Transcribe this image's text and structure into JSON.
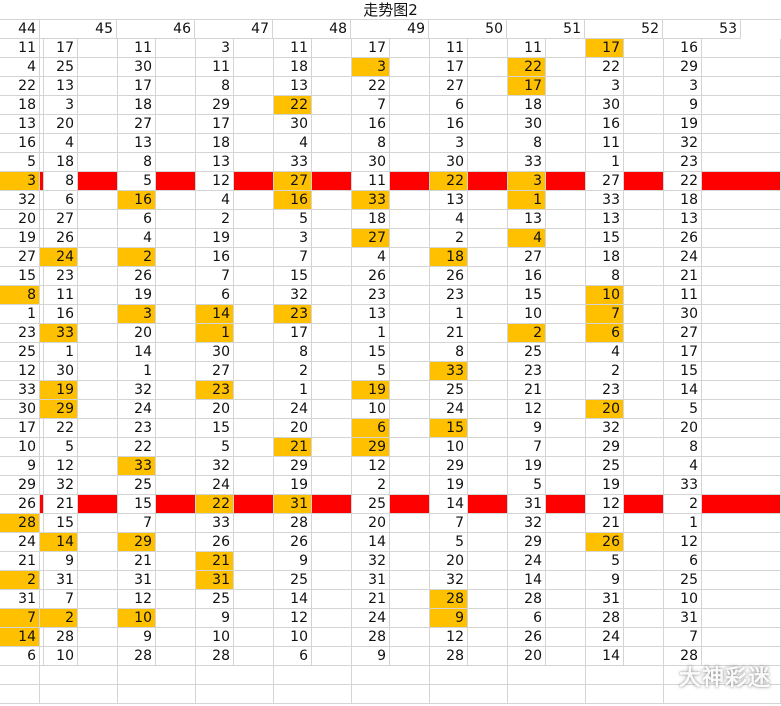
{
  "title": "走势图2",
  "watermark": "大神彩迷",
  "colors": {
    "highlight": "#ffc000",
    "separator": "#ff0000",
    "grid": "#d4d4d4"
  },
  "headers": [
    "44",
    "45",
    "46",
    "47",
    "48",
    "49",
    "50",
    "51",
    "52",
    "53"
  ],
  "rows": [
    [
      "11",
      "17",
      "11",
      "3",
      "11",
      "17",
      "11",
      "11",
      "17",
      "16"
    ],
    [
      "4",
      "25",
      "30",
      "11",
      "18",
      "3",
      "17",
      "22",
      "22",
      "29"
    ],
    [
      "22",
      "13",
      "17",
      "8",
      "13",
      "22",
      "27",
      "17",
      "3",
      "3"
    ],
    [
      "18",
      "3",
      "18",
      "29",
      "22",
      "7",
      "6",
      "18",
      "30",
      "9"
    ],
    [
      "13",
      "20",
      "27",
      "17",
      "30",
      "16",
      "16",
      "30",
      "16",
      "19"
    ],
    [
      "16",
      "4",
      "13",
      "18",
      "4",
      "8",
      "3",
      "8",
      "11",
      "32"
    ],
    [
      "5",
      "18",
      "8",
      "13",
      "33",
      "30",
      "30",
      "33",
      "1",
      "23"
    ],
    [
      "3",
      "8",
      "5",
      "12",
      "27",
      "11",
      "22",
      "3",
      "27",
      "22"
    ],
    [
      "32",
      "6",
      "16",
      "4",
      "16",
      "33",
      "13",
      "1",
      "33",
      "18"
    ],
    [
      "20",
      "27",
      "6",
      "2",
      "5",
      "18",
      "4",
      "13",
      "13",
      "13"
    ],
    [
      "19",
      "26",
      "4",
      "19",
      "3",
      "27",
      "2",
      "4",
      "15",
      "26"
    ],
    [
      "27",
      "24",
      "2",
      "16",
      "7",
      "4",
      "18",
      "27",
      "18",
      "24"
    ],
    [
      "15",
      "23",
      "26",
      "7",
      "15",
      "26",
      "26",
      "16",
      "8",
      "21"
    ],
    [
      "8",
      "11",
      "19",
      "6",
      "32",
      "23",
      "23",
      "15",
      "10",
      "11"
    ],
    [
      "1",
      "16",
      "3",
      "14",
      "23",
      "13",
      "1",
      "10",
      "7",
      "30"
    ],
    [
      "23",
      "33",
      "20",
      "1",
      "17",
      "1",
      "21",
      "2",
      "6",
      "27"
    ],
    [
      "25",
      "1",
      "14",
      "30",
      "8",
      "15",
      "8",
      "25",
      "4",
      "17"
    ],
    [
      "12",
      "30",
      "1",
      "27",
      "2",
      "5",
      "33",
      "23",
      "2",
      "15"
    ],
    [
      "33",
      "19",
      "32",
      "23",
      "1",
      "19",
      "25",
      "21",
      "23",
      "14"
    ],
    [
      "30",
      "29",
      "24",
      "20",
      "24",
      "10",
      "24",
      "12",
      "20",
      "5"
    ],
    [
      "17",
      "22",
      "23",
      "15",
      "20",
      "6",
      "15",
      "9",
      "32",
      "20"
    ],
    [
      "10",
      "5",
      "22",
      "5",
      "21",
      "29",
      "10",
      "7",
      "29",
      "8"
    ],
    [
      "9",
      "12",
      "33",
      "32",
      "29",
      "12",
      "29",
      "19",
      "25",
      "4"
    ],
    [
      "29",
      "32",
      "25",
      "24",
      "19",
      "2",
      "19",
      "5",
      "19",
      "33"
    ],
    [
      "26",
      "21",
      "15",
      "22",
      "31",
      "25",
      "14",
      "31",
      "12",
      "2"
    ],
    [
      "28",
      "15",
      "7",
      "33",
      "28",
      "20",
      "7",
      "32",
      "21",
      "1"
    ],
    [
      "24",
      "14",
      "29",
      "26",
      "26",
      "14",
      "5",
      "29",
      "26",
      "12"
    ],
    [
      "21",
      "9",
      "21",
      "21",
      "9",
      "32",
      "20",
      "24",
      "5",
      "6"
    ],
    [
      "2",
      "31",
      "31",
      "31",
      "25",
      "31",
      "32",
      "14",
      "9",
      "25"
    ],
    [
      "31",
      "7",
      "12",
      "25",
      "14",
      "21",
      "28",
      "28",
      "31",
      "10"
    ],
    [
      "7",
      "2",
      "10",
      "9",
      "12",
      "24",
      "9",
      "6",
      "28",
      "31"
    ],
    [
      "14",
      "28",
      "9",
      "10",
      "10",
      "28",
      "12",
      "26",
      "24",
      "7"
    ],
    [
      "6",
      "10",
      "28",
      "28",
      "6",
      "9",
      "28",
      "20",
      "14",
      "28"
    ]
  ],
  "highlights": [
    [
      0,
      8
    ],
    [
      1,
      5
    ],
    [
      1,
      7
    ],
    [
      2,
      7
    ],
    [
      3,
      4
    ],
    [
      7,
      0
    ],
    [
      7,
      4
    ],
    [
      7,
      6
    ],
    [
      7,
      7
    ],
    [
      8,
      2
    ],
    [
      8,
      4
    ],
    [
      8,
      5
    ],
    [
      8,
      7
    ],
    [
      10,
      5
    ],
    [
      10,
      7
    ],
    [
      11,
      1
    ],
    [
      11,
      2
    ],
    [
      11,
      6
    ],
    [
      13,
      0
    ],
    [
      13,
      8
    ],
    [
      14,
      2
    ],
    [
      14,
      3
    ],
    [
      14,
      4
    ],
    [
      14,
      8
    ],
    [
      15,
      1
    ],
    [
      15,
      3
    ],
    [
      15,
      7
    ],
    [
      15,
      8
    ],
    [
      17,
      6
    ],
    [
      18,
      1
    ],
    [
      18,
      3
    ],
    [
      18,
      5
    ],
    [
      19,
      1
    ],
    [
      19,
      8
    ],
    [
      20,
      5
    ],
    [
      20,
      6
    ],
    [
      21,
      4
    ],
    [
      21,
      5
    ],
    [
      22,
      2
    ],
    [
      24,
      3
    ],
    [
      24,
      4
    ],
    [
      25,
      0
    ],
    [
      26,
      1
    ],
    [
      26,
      2
    ],
    [
      26,
      8
    ],
    [
      27,
      3
    ],
    [
      28,
      0
    ],
    [
      28,
      3
    ],
    [
      29,
      6
    ],
    [
      30,
      0
    ],
    [
      30,
      1
    ],
    [
      30,
      2
    ],
    [
      30,
      6
    ],
    [
      31,
      0
    ]
  ],
  "separator_rows": [
    7,
    24
  ],
  "empty_rows": 2
}
